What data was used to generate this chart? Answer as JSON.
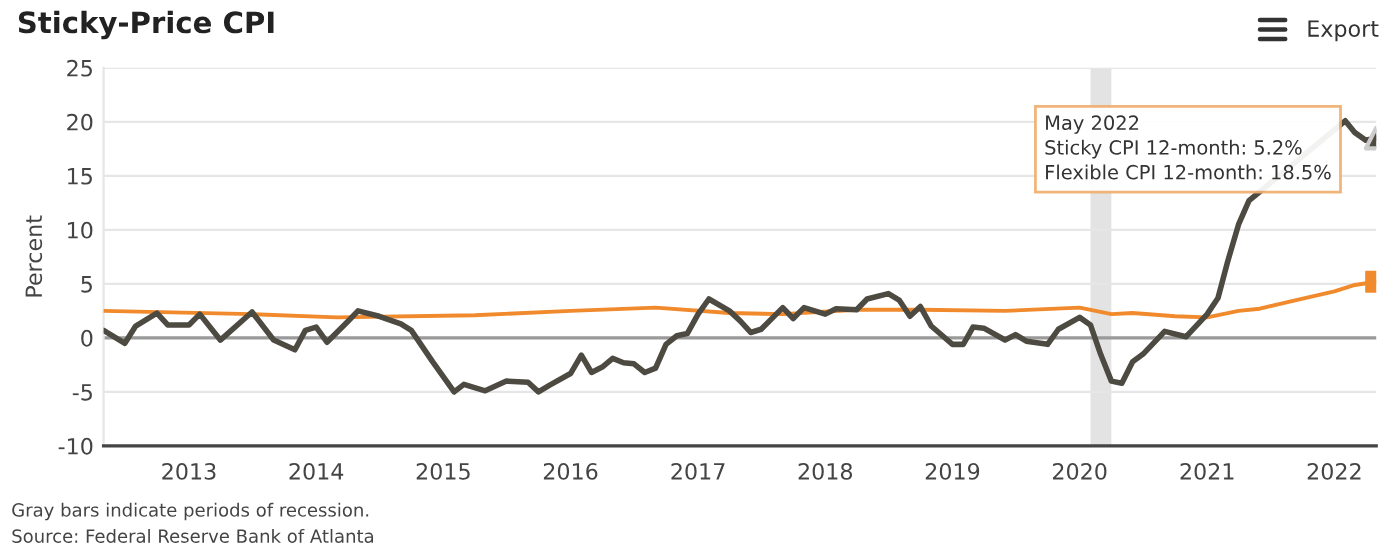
{
  "chart_data": {
    "type": "line",
    "title": "Sticky-Price CPI",
    "ylabel": "Percent",
    "xlim": [
      "2012-05",
      "2022-05"
    ],
    "xticks": [
      "2013",
      "2014",
      "2015",
      "2016",
      "2017",
      "2018",
      "2019",
      "2020",
      "2021",
      "2022"
    ],
    "ylim": [
      -10,
      25
    ],
    "yticks": [
      -10,
      -5,
      0,
      5,
      10,
      15,
      20,
      25
    ],
    "grid": "y",
    "legend": false,
    "line_style": "solid",
    "ref_lines": [
      {
        "axis": "y",
        "value": 0,
        "color": "#9a9a9a"
      }
    ],
    "bands": [
      {
        "axis": "x",
        "from": "2020-02",
        "to": "2020-04",
        "color": "#e3e3e3"
      }
    ],
    "series": [
      {
        "color": "#f08a2c",
        "x": [
          "2012-05",
          "2013-07",
          "2014-03",
          "2015-04",
          "2016-01",
          "2016-09",
          "2017-04",
          "2017-09",
          "2018-04",
          "2018-10",
          "2019-06",
          "2020-01",
          "2020-04",
          "2020-06",
          "2020-10",
          "2021-01",
          "2021-04",
          "2021-06",
          "2021-09",
          "2022-01",
          "2022-03",
          "2022-05"
        ],
        "values": [
          2.5,
          2.2,
          1.9,
          2.1,
          2.5,
          2.8,
          2.3,
          2.2,
          2.6,
          2.6,
          2.5,
          2.8,
          2.2,
          2.3,
          2.0,
          1.9,
          2.5,
          2.7,
          3.4,
          4.3,
          4.9,
          5.2
        ]
      },
      {
        "color": "#4d4a42",
        "x": [
          "2012-05",
          "2012-07",
          "2012-08",
          "2012-10",
          "2012-11",
          "2013-01",
          "2013-02",
          "2013-04",
          "2013-07",
          "2013-09",
          "2013-11",
          "2013-12",
          "2014-01",
          "2014-02",
          "2014-04",
          "2014-05",
          "2014-07",
          "2014-09",
          "2014-10",
          "2014-12",
          "2015-02",
          "2015-03",
          "2015-05",
          "2015-07",
          "2015-09",
          "2015-10",
          "2015-11",
          "2016-01",
          "2016-02",
          "2016-03",
          "2016-04",
          "2016-05",
          "2016-06",
          "2016-07",
          "2016-08",
          "2016-09",
          "2016-10",
          "2016-11",
          "2016-12",
          "2017-01",
          "2017-02",
          "2017-04",
          "2017-05",
          "2017-06",
          "2017-07",
          "2017-09",
          "2017-10",
          "2017-11",
          "2018-01",
          "2018-02",
          "2018-04",
          "2018-05",
          "2018-07",
          "2018-08",
          "2018-09",
          "2018-10",
          "2018-11",
          "2019-01",
          "2019-02",
          "2019-03",
          "2019-04",
          "2019-06",
          "2019-07",
          "2019-08",
          "2019-10",
          "2019-11",
          "2020-01",
          "2020-02",
          "2020-03",
          "2020-04",
          "2020-05",
          "2020-06",
          "2020-07",
          "2020-09",
          "2020-11",
          "2021-01",
          "2021-02",
          "2021-03",
          "2021-04",
          "2021-05",
          "2021-06",
          "2021-09",
          "2022-02",
          "2022-03",
          "2022-04",
          "2022-05"
        ],
        "values": [
          0.7,
          -0.5,
          1.1,
          2.3,
          1.2,
          1.2,
          2.2,
          -0.2,
          2.4,
          -0.2,
          -1.1,
          0.7,
          1.0,
          -0.4,
          1.5,
          2.5,
          2.0,
          1.3,
          0.7,
          -2.2,
          -5.0,
          -4.3,
          -4.9,
          -4.0,
          -4.1,
          -5.0,
          -4.4,
          -3.3,
          -1.6,
          -3.2,
          -2.7,
          -1.9,
          -2.3,
          -2.4,
          -3.2,
          -2.8,
          -0.6,
          0.2,
          0.4,
          2.2,
          3.6,
          2.5,
          1.6,
          0.5,
          0.8,
          2.8,
          1.8,
          2.8,
          2.2,
          2.7,
          2.6,
          3.6,
          4.1,
          3.5,
          2.0,
          2.9,
          1.1,
          -0.6,
          -0.6,
          1.0,
          0.9,
          -0.2,
          0.3,
          -0.3,
          -0.6,
          0.8,
          1.9,
          1.2,
          -1.5,
          -4.0,
          -4.2,
          -2.2,
          -1.5,
          0.6,
          0.1,
          2.2,
          3.7,
          7.1,
          10.5,
          12.7,
          null,
          null,
          20.1,
          19.0,
          18.3,
          18.5
        ]
      },
      {
        "type": "scatter",
        "color": "#f08a2c",
        "marker": "square",
        "x": [
          "2022-05"
        ],
        "values": [
          5.2
        ]
      },
      {
        "type": "scatter",
        "color": "#4d4a42",
        "marker": "triangle",
        "x": [
          "2022-05"
        ],
        "values": [
          18.5
        ]
      }
    ],
    "annotations": [
      {
        "text": "May 2022\nSticky CPI 12-month: 5.2%\nFlexible CPI 12-month: 18.5%",
        "x": "2022-05",
        "y": 18.5
      },
      "Export",
      "Gray bars indicate periods of recession.",
      "Source: Federal Reserve Bank of Atlanta"
    ]
  }
}
